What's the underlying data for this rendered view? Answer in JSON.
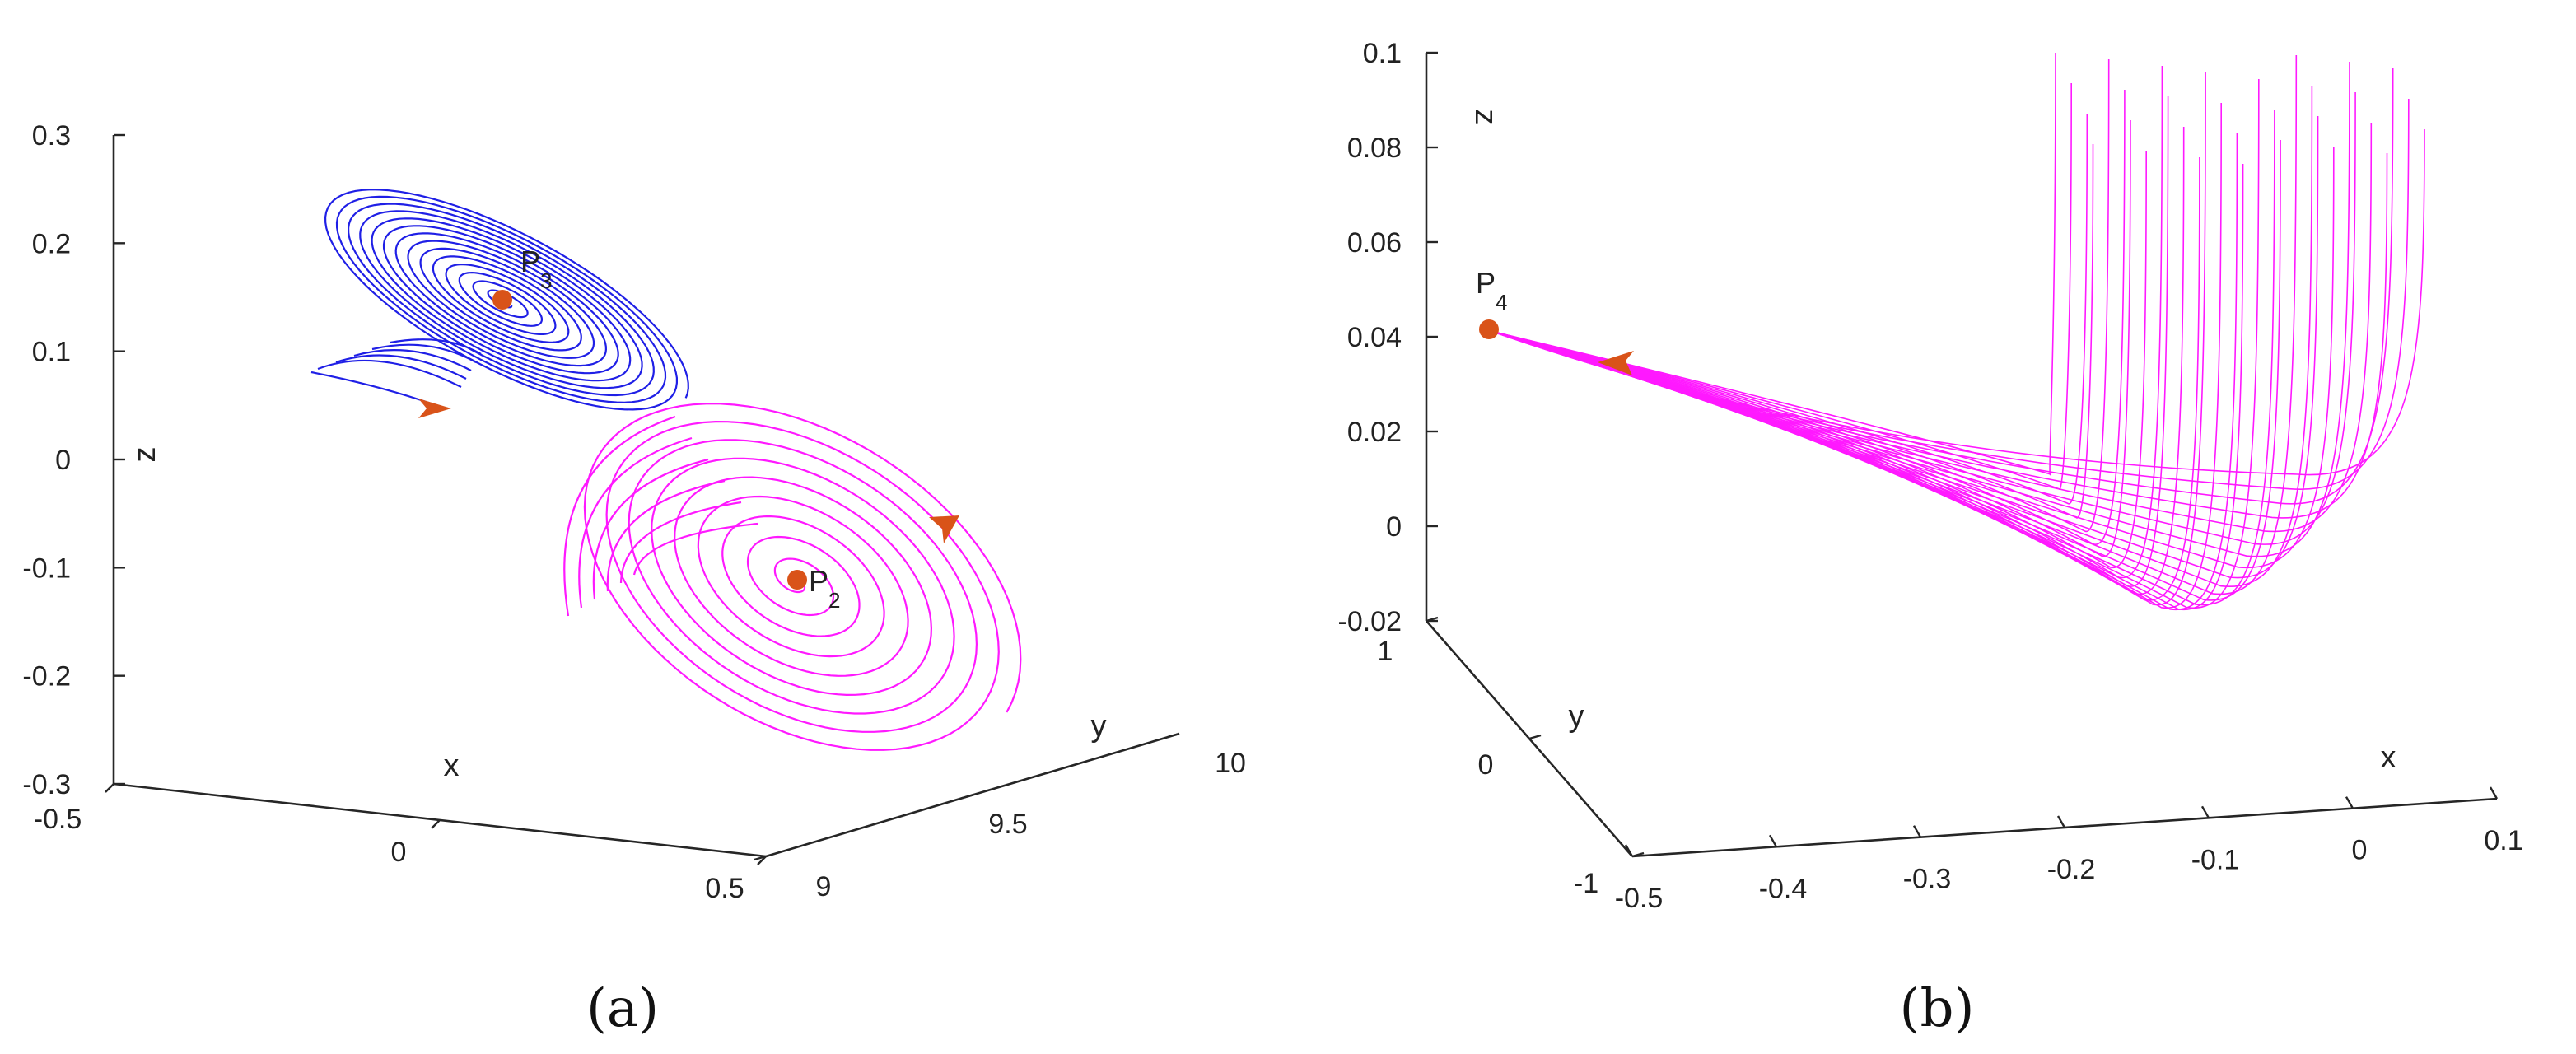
{
  "colors": {
    "blue": "#1f1fe6",
    "magenta": "#ff19ff",
    "point": "#d95319",
    "axis": "#262626"
  },
  "chart_data": [
    {
      "panel": "(a)",
      "type": "line",
      "projection": "3d",
      "xlabel": "x",
      "ylabel": "y",
      "zlabel": "z",
      "xlim": [
        -0.5,
        0.5
      ],
      "ylim": [
        9,
        10
      ],
      "zlim": [
        -0.3,
        0.3
      ],
      "x_ticks": [
        "-0.5",
        "0",
        "0.5"
      ],
      "y_ticks": [
        "9",
        "9.5",
        "10"
      ],
      "z_ticks": [
        "0.3",
        "0.2",
        "0.1",
        "0",
        "-0.1",
        "-0.2",
        "-0.3"
      ],
      "points": [
        {
          "name": "P",
          "sub": "3",
          "x": -0.02,
          "y": 9.78,
          "z": 0.146
        },
        {
          "name": "P",
          "sub": "2",
          "x": 0.02,
          "y": 9.83,
          "z": -0.117
        }
      ],
      "series": [
        {
          "color": "blue",
          "attractor": "P3",
          "turns": 14,
          "approx_max_radius": 0.12
        },
        {
          "color": "magenta",
          "attractor": "P2",
          "turns": 9,
          "approx_max_radius": 0.18
        }
      ]
    },
    {
      "panel": "(b)",
      "type": "line",
      "projection": "3d",
      "xlabel": "x",
      "ylabel": "y",
      "zlabel": "z",
      "xlim": [
        -0.5,
        0.1
      ],
      "ylim": [
        -1,
        1
      ],
      "zlim": [
        -0.02,
        0.1
      ],
      "x_ticks": [
        "-0.5",
        "-0.4",
        "-0.3",
        "-0.2",
        "-0.1",
        "0",
        "0.1"
      ],
      "y_ticks": [
        "1",
        "0",
        "-1"
      ],
      "z_ticks": [
        "0.1",
        "0.08",
        "0.06",
        "0.04",
        "0.02",
        "0",
        "-0.02"
      ],
      "points": [
        {
          "name": "P",
          "sub": "4",
          "x": -0.5,
          "y": 0,
          "z": 0.04
        }
      ],
      "series": [
        {
          "color": "magenta",
          "attractor": "P4",
          "trajectories": 30,
          "start_z": 0.1,
          "min_z": -0.02
        }
      ]
    }
  ]
}
